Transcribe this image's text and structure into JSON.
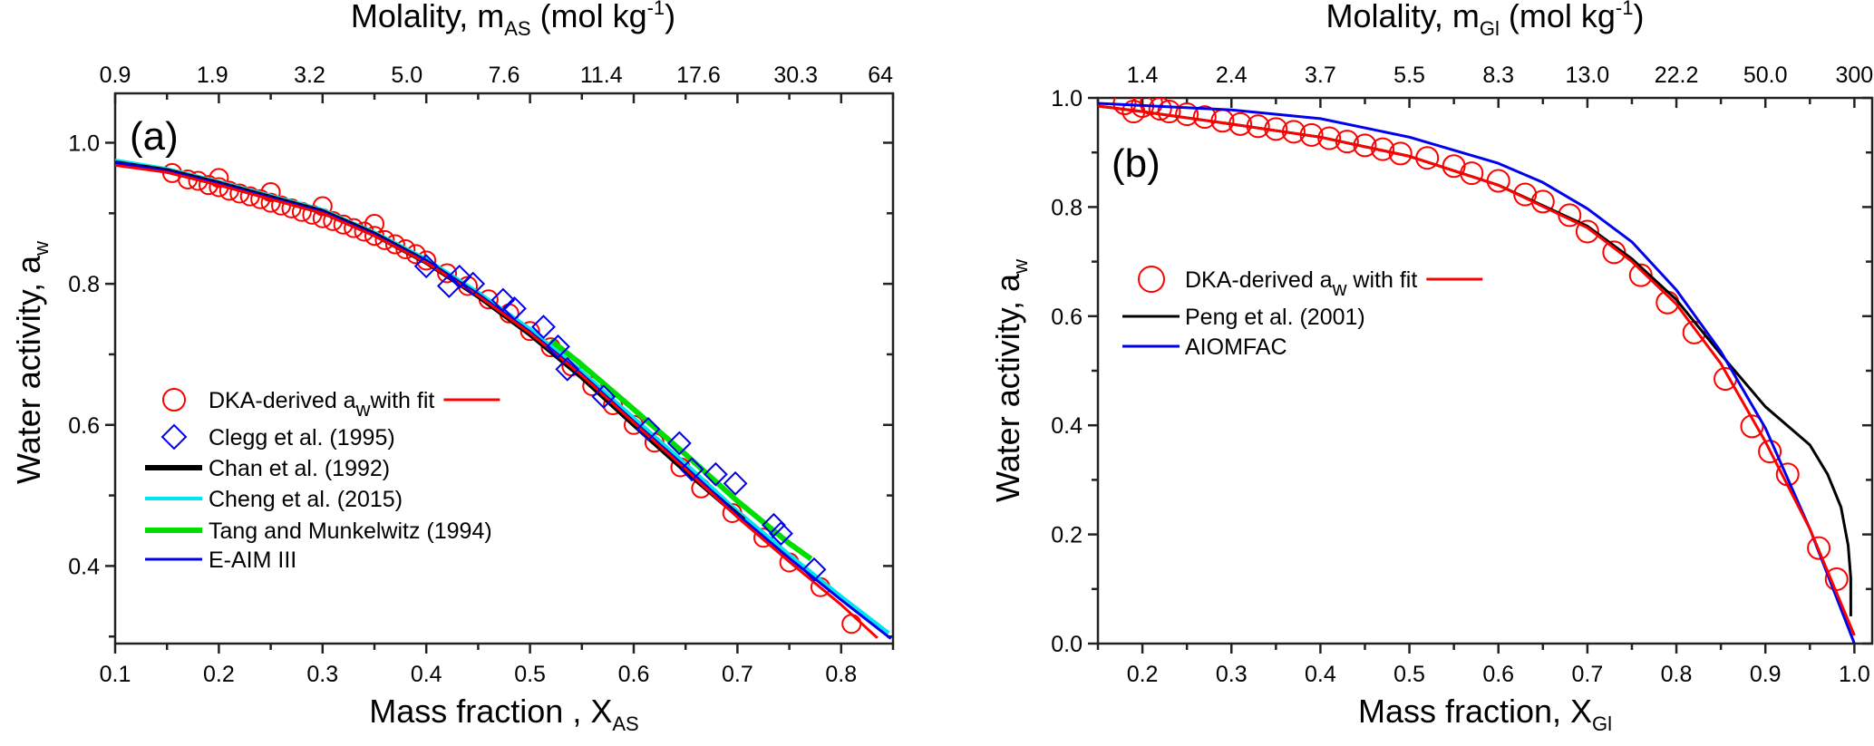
{
  "chart_data": [
    {
      "type": "line",
      "panel_label": "(a)",
      "top_title": {
        "main": "Molality, m",
        "sub": "AS",
        "unit_pre": " (mol kg",
        "sup": "-1",
        "unit_post": ")"
      },
      "xlabel": {
        "main": "Mass fraction , X",
        "sub": "AS"
      },
      "ylabel": {
        "main": "Water activity, a",
        "sub": "w"
      },
      "xlim": [
        0.1,
        0.85
      ],
      "ylim": [
        0.29,
        1.07
      ],
      "x_ticks": [
        "0.1",
        "0.2",
        "0.3",
        "0.4",
        "0.5",
        "0.6",
        "0.7",
        "0.8"
      ],
      "y_ticks": [
        "0.4",
        "0.6",
        "0.8",
        "1.0"
      ],
      "top_ticks": [
        "0.9",
        "1.9",
        "3.2",
        "5.0",
        "7.6",
        "11.4",
        "17.6",
        "30.3",
        "64"
      ],
      "legend_placement": "left",
      "series": [
        {
          "name": "Cheng et al. (2015)",
          "kind": "line",
          "color": "#00e5ee",
          "points": [
            [
              0.1,
              0.975
            ],
            [
              0.15,
              0.963
            ],
            [
              0.2,
              0.945
            ],
            [
              0.25,
              0.925
            ],
            [
              0.3,
              0.905
            ],
            [
              0.35,
              0.873
            ],
            [
              0.4,
              0.835
            ],
            [
              0.45,
              0.788
            ],
            [
              0.5,
              0.736
            ],
            [
              0.55,
              0.676
            ],
            [
              0.6,
              0.61
            ],
            [
              0.65,
              0.545
            ],
            [
              0.7,
              0.478
            ],
            [
              0.75,
              0.416
            ],
            [
              0.8,
              0.357
            ],
            [
              0.846,
              0.305
            ]
          ]
        },
        {
          "name": "Chan et al. (1992)",
          "kind": "line",
          "color": "#000000",
          "points": [
            [
              0.1,
              0.971
            ],
            [
              0.15,
              0.96
            ],
            [
              0.2,
              0.942
            ],
            [
              0.25,
              0.922
            ],
            [
              0.3,
              0.902
            ],
            [
              0.35,
              0.87
            ],
            [
              0.4,
              0.831
            ],
            [
              0.45,
              0.783
            ],
            [
              0.5,
              0.729
            ],
            [
              0.55,
              0.668
            ],
            [
              0.6,
              0.601
            ],
            [
              0.65,
              0.535
            ],
            [
              0.706,
              0.465
            ]
          ]
        },
        {
          "name": "Tang and Munkelwitz (1994)",
          "kind": "line",
          "color": "#00dd00",
          "points": [
            [
              0.52,
              0.72
            ],
            [
              0.546,
              0.69
            ],
            [
              0.6,
              0.622
            ],
            [
              0.65,
              0.558
            ],
            [
              0.7,
              0.492
            ],
            [
              0.75,
              0.432
            ],
            [
              0.771,
              0.41
            ]
          ]
        },
        {
          "name": "E-AIM III",
          "kind": "line",
          "color": "#0000ee",
          "points": [
            [
              0.1,
              0.972
            ],
            [
              0.15,
              0.96
            ],
            [
              0.2,
              0.942
            ],
            [
              0.25,
              0.922
            ],
            [
              0.3,
              0.902
            ],
            [
              0.35,
              0.87
            ],
            [
              0.4,
              0.832
            ],
            [
              0.45,
              0.785
            ],
            [
              0.5,
              0.732
            ],
            [
              0.55,
              0.672
            ],
            [
              0.6,
              0.605
            ],
            [
              0.65,
              0.54
            ],
            [
              0.7,
              0.473
            ],
            [
              0.75,
              0.411
            ],
            [
              0.8,
              0.352
            ],
            [
              0.848,
              0.297
            ]
          ]
        },
        {
          "name": "DKA-derived a_w with fit",
          "legend": {
            "main": "DKA-derived a",
            "sub": "w",
            "post": "with fit"
          },
          "kind": "line+circle",
          "color": "#ff0000",
          "points": [
            [
              0.1,
              0.968
            ],
            [
              0.15,
              0.958
            ],
            [
              0.2,
              0.94
            ],
            [
              0.25,
              0.92
            ],
            [
              0.3,
              0.9
            ],
            [
              0.35,
              0.868
            ],
            [
              0.4,
              0.83
            ],
            [
              0.45,
              0.783
            ],
            [
              0.5,
              0.73
            ],
            [
              0.55,
              0.67
            ],
            [
              0.6,
              0.603
            ],
            [
              0.65,
              0.537
            ],
            [
              0.7,
              0.469
            ],
            [
              0.75,
              0.406
            ],
            [
              0.8,
              0.345
            ],
            [
              0.835,
              0.298
            ]
          ],
          "markers": [
            [
              0.155,
              0.957
            ],
            [
              0.17,
              0.948
            ],
            [
              0.18,
              0.946
            ],
            [
              0.19,
              0.94
            ],
            [
              0.2,
              0.937
            ],
            [
              0.2,
              0.95
            ],
            [
              0.21,
              0.932
            ],
            [
              0.22,
              0.928
            ],
            [
              0.23,
              0.924
            ],
            [
              0.24,
              0.92
            ],
            [
              0.25,
              0.915
            ],
            [
              0.25,
              0.93
            ],
            [
              0.26,
              0.911
            ],
            [
              0.27,
              0.907
            ],
            [
              0.28,
              0.902
            ],
            [
              0.29,
              0.898
            ],
            [
              0.3,
              0.893
            ],
            [
              0.3,
              0.91
            ],
            [
              0.31,
              0.889
            ],
            [
              0.32,
              0.884
            ],
            [
              0.33,
              0.879
            ],
            [
              0.34,
              0.874
            ],
            [
              0.35,
              0.868
            ],
            [
              0.35,
              0.885
            ],
            [
              0.36,
              0.862
            ],
            [
              0.37,
              0.856
            ],
            [
              0.38,
              0.849
            ],
            [
              0.39,
              0.842
            ],
            [
              0.4,
              0.833
            ],
            [
              0.42,
              0.815
            ],
            [
              0.44,
              0.797
            ],
            [
              0.46,
              0.778
            ],
            [
              0.48,
              0.758
            ],
            [
              0.5,
              0.733
            ],
            [
              0.52,
              0.71
            ],
            [
              0.54,
              0.683
            ],
            [
              0.56,
              0.655
            ],
            [
              0.58,
              0.628
            ],
            [
              0.6,
              0.6
            ],
            [
              0.62,
              0.575
            ],
            [
              0.645,
              0.54
            ],
            [
              0.665,
              0.51
            ],
            [
              0.695,
              0.475
            ],
            [
              0.725,
              0.44
            ],
            [
              0.75,
              0.405
            ],
            [
              0.78,
              0.37
            ],
            [
              0.81,
              0.318
            ]
          ]
        },
        {
          "name": "Clegg et al. (1995)",
          "kind": "diamond",
          "color": "#0000ee",
          "markers": [
            [
              0.4,
              0.825
            ],
            [
              0.422,
              0.797
            ],
            [
              0.432,
              0.81
            ],
            [
              0.445,
              0.8
            ],
            [
              0.474,
              0.777
            ],
            [
              0.485,
              0.765
            ],
            [
              0.513,
              0.739
            ],
            [
              0.527,
              0.711
            ],
            [
              0.536,
              0.679
            ],
            [
              0.571,
              0.64
            ],
            [
              0.614,
              0.594
            ],
            [
              0.644,
              0.574
            ],
            [
              0.656,
              0.537
            ],
            [
              0.679,
              0.53
            ],
            [
              0.698,
              0.517
            ],
            [
              0.735,
              0.458
            ],
            [
              0.742,
              0.446
            ],
            [
              0.774,
              0.395
            ]
          ]
        }
      ],
      "legend_order": [
        "DKA-derived a_w with fit",
        "Clegg et al. (1995)",
        "Chan et al. (1992)",
        "Cheng et al. (2015)",
        "Tang and Munkelwitz (1994)",
        "E-AIM III"
      ]
    },
    {
      "type": "line",
      "panel_label": "(b)",
      "top_title": {
        "main": "Molality, m",
        "sub": "Gl",
        "unit_pre": " (mol kg",
        "sup": "-1",
        "unit_post": ")"
      },
      "xlabel": {
        "main": "Mass fraction, X",
        "sub": "Gl"
      },
      "ylabel": {
        "main": "Water activity, a",
        "sub": "w"
      },
      "xlim": [
        0.15,
        1.02
      ],
      "ylim": [
        0.0,
        1.0
      ],
      "x_ticks": [
        "0.2",
        "0.3",
        "0.4",
        "0.5",
        "0.6",
        "0.7",
        "0.8",
        "0.9",
        "1.0"
      ],
      "y_ticks": [
        "0.0",
        "0.2",
        "0.4",
        "0.6",
        "0.8",
        "1.0"
      ],
      "top_ticks": [
        "1.4",
        "2.4",
        "3.7",
        "5.5",
        "8.3",
        "13.0",
        "22.2",
        "50.0",
        "300"
      ],
      "legend_placement": "left",
      "series": [
        {
          "name": "Peng et al. (2001)",
          "kind": "line",
          "color": "#000000",
          "points": [
            [
              0.15,
              0.985
            ],
            [
              0.2,
              0.975
            ],
            [
              0.3,
              0.952
            ],
            [
              0.4,
              0.928
            ],
            [
              0.5,
              0.893
            ],
            [
              0.6,
              0.84
            ],
            [
              0.7,
              0.765
            ],
            [
              0.75,
              0.705
            ],
            [
              0.8,
              0.63
            ],
            [
              0.85,
              0.53
            ],
            [
              0.9,
              0.434
            ],
            [
              0.95,
              0.364
            ],
            [
              0.97,
              0.31
            ],
            [
              0.985,
              0.25
            ],
            [
              0.993,
              0.18
            ],
            [
              0.996,
              0.12
            ],
            [
              0.996,
              0.05
            ]
          ]
        },
        {
          "name": "AIOMFAC",
          "kind": "line",
          "color": "#0000ee",
          "points": [
            [
              0.15,
              0.99
            ],
            [
              0.2,
              0.986
            ],
            [
              0.3,
              0.978
            ],
            [
              0.4,
              0.962
            ],
            [
              0.5,
              0.928
            ],
            [
              0.6,
              0.88
            ],
            [
              0.65,
              0.845
            ],
            [
              0.7,
              0.797
            ],
            [
              0.75,
              0.736
            ],
            [
              0.8,
              0.648
            ],
            [
              0.85,
              0.535
            ],
            [
              0.9,
              0.395
            ],
            [
              0.95,
              0.21
            ],
            [
              1.0,
              0.0
            ]
          ]
        },
        {
          "name": "DKA-derived a_w with fit",
          "legend": {
            "main": "DKA-derived a",
            "sub": "w",
            "post": " with fit"
          },
          "kind": "line+circle",
          "color": "#ff0000",
          "points": [
            [
              0.15,
              0.985
            ],
            [
              0.2,
              0.975
            ],
            [
              0.3,
              0.952
            ],
            [
              0.4,
              0.928
            ],
            [
              0.5,
              0.893
            ],
            [
              0.6,
              0.84
            ],
            [
              0.7,
              0.762
            ],
            [
              0.75,
              0.7
            ],
            [
              0.8,
              0.622
            ],
            [
              0.85,
              0.513
            ],
            [
              0.9,
              0.37
            ],
            [
              0.95,
              0.21
            ],
            [
              1.0,
              0.015
            ]
          ],
          "markers": [
            [
              0.18,
              0.99
            ],
            [
              0.19,
              0.975
            ],
            [
              0.2,
              0.985
            ],
            [
              0.21,
              0.99
            ],
            [
              0.22,
              0.98
            ],
            [
              0.23,
              0.975
            ],
            [
              0.25,
              0.97
            ],
            [
              0.27,
              0.965
            ],
            [
              0.29,
              0.958
            ],
            [
              0.31,
              0.952
            ],
            [
              0.33,
              0.948
            ],
            [
              0.35,
              0.943
            ],
            [
              0.37,
              0.938
            ],
            [
              0.39,
              0.932
            ],
            [
              0.41,
              0.926
            ],
            [
              0.43,
              0.92
            ],
            [
              0.45,
              0.913
            ],
            [
              0.47,
              0.906
            ],
            [
              0.49,
              0.898
            ],
            [
              0.52,
              0.89
            ],
            [
              0.55,
              0.875
            ],
            [
              0.57,
              0.862
            ],
            [
              0.6,
              0.848
            ],
            [
              0.63,
              0.823
            ],
            [
              0.65,
              0.81
            ],
            [
              0.68,
              0.785
            ],
            [
              0.7,
              0.755
            ],
            [
              0.73,
              0.717
            ],
            [
              0.76,
              0.675
            ],
            [
              0.79,
              0.625
            ],
            [
              0.82,
              0.57
            ],
            [
              0.855,
              0.485
            ],
            [
              0.885,
              0.398
            ],
            [
              0.905,
              0.352
            ],
            [
              0.925,
              0.31
            ],
            [
              0.96,
              0.175
            ],
            [
              0.98,
              0.118
            ]
          ]
        }
      ],
      "legend_order": [
        "DKA-derived a_w with fit",
        "Peng et al. (2001)",
        "AIOMFAC"
      ]
    }
  ]
}
